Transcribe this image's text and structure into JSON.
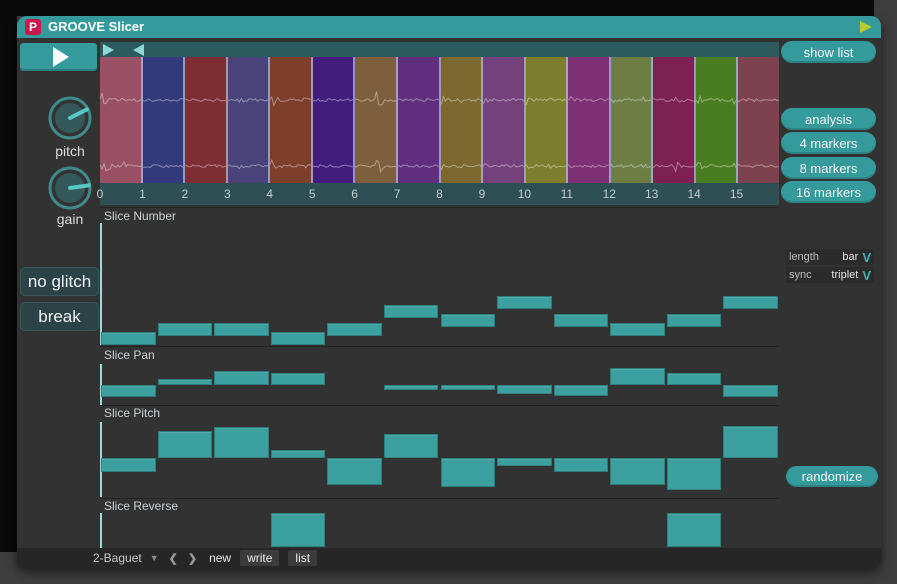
{
  "window": {
    "title": "GROOVE Slicer",
    "logo_letter": "P"
  },
  "colors": {
    "accent": "#359a9b",
    "bar": "#3ba09f",
    "logo": "#c9184e",
    "titlebar_play_arrow": "#b6cb2a",
    "slice_separator": "#adbade",
    "lane_cursor": "#9adbdb"
  },
  "icons": {
    "titlebar_play": "play-arrow",
    "play_button": "play-arrow",
    "selection_start": "right-triangle",
    "selection_end": "left-triangle",
    "dropdown_chevron": "V",
    "preset_dropdown": "▼",
    "prev": "❮",
    "next": "❯"
  },
  "knobs": [
    {
      "label": "pitch",
      "pointer_deg": 27
    },
    {
      "label": "gain",
      "pointer_deg": 8
    }
  ],
  "glitch_buttons": [
    {
      "label": "no glitch"
    },
    {
      "label": "break"
    }
  ],
  "right_panel": {
    "buttons": [
      {
        "id": "show-list",
        "label": "show list"
      },
      {
        "id": "analysis",
        "label": "analysis"
      },
      {
        "id": "markers-4",
        "label": "4 markers"
      },
      {
        "id": "markers-8",
        "label": "8 markers"
      },
      {
        "id": "markers-16",
        "label": "16 markers"
      }
    ],
    "dropdowns": [
      {
        "label": "length",
        "value": "bar"
      },
      {
        "label": "sync",
        "value": "triplet"
      }
    ],
    "randomize_label": "randomize"
  },
  "waveform": {
    "channels": 2,
    "slice_colors": [
      "#9a5064",
      "#333a7c",
      "#7d2e33",
      "#4a4379",
      "#7d3e2c",
      "#431d7e",
      "#7d5f3e",
      "#5f2e7d",
      "#7d6830",
      "#74417d",
      "#7d7d30",
      "#7d3073",
      "#6d7d43",
      "#7d2054",
      "#4a7d20",
      "#7d4150"
    ],
    "ruler_labels": [
      "0",
      "1",
      "2",
      "3",
      "4",
      "5",
      "6",
      "7",
      "8",
      "9",
      "10",
      "11",
      "12",
      "13",
      "14",
      "15"
    ],
    "transients": [
      {
        "x": 0.002,
        "a": 13
      },
      {
        "x": 0.03,
        "a": 8
      },
      {
        "x": 0.205,
        "a": 4
      },
      {
        "x": 0.252,
        "a": 9
      },
      {
        "x": 0.3,
        "a": 4
      },
      {
        "x": 0.405,
        "a": 15
      },
      {
        "x": 0.5,
        "a": 7
      },
      {
        "x": 0.53,
        "a": 4
      },
      {
        "x": 0.562,
        "a": 6
      },
      {
        "x": 0.627,
        "a": 5
      },
      {
        "x": 0.66,
        "a": 4
      },
      {
        "x": 0.692,
        "a": 5
      },
      {
        "x": 0.752,
        "a": 4
      },
      {
        "x": 0.8,
        "a": 4
      },
      {
        "x": 0.845,
        "a": 15
      },
      {
        "x": 0.878,
        "a": 9
      },
      {
        "x": 0.932,
        "a": 5
      }
    ]
  },
  "lanes": [
    {
      "label": "Slice Number",
      "mode": "steps",
      "range": 12,
      "values": [
        0,
        1,
        1,
        0,
        1,
        3,
        2,
        4,
        2,
        1,
        2,
        4
      ]
    },
    {
      "label": "Slice Pan",
      "mode": "bipolar",
      "values": [
        -0.55,
        0.27,
        0.68,
        0.55,
        0,
        -0.23,
        -0.23,
        -0.44,
        -0.5,
        0.82,
        0.59,
        -0.55
      ]
    },
    {
      "label": "Slice Pitch",
      "mode": "bipolar",
      "values": [
        -0.36,
        0.72,
        0.82,
        0.21,
        -0.72,
        0.64,
        -0.77,
        -0.21,
        -0.38,
        -0.72,
        -0.85,
        0.85
      ]
    },
    {
      "label": "Slice Reverse",
      "mode": "toggle",
      "values": [
        0,
        0,
        0,
        1,
        0,
        0,
        0,
        0,
        0,
        0,
        1,
        0
      ]
    }
  ],
  "preset_bar": {
    "preset_name": "2-Baguet",
    "buttons": [
      "new",
      "write",
      "list"
    ]
  }
}
